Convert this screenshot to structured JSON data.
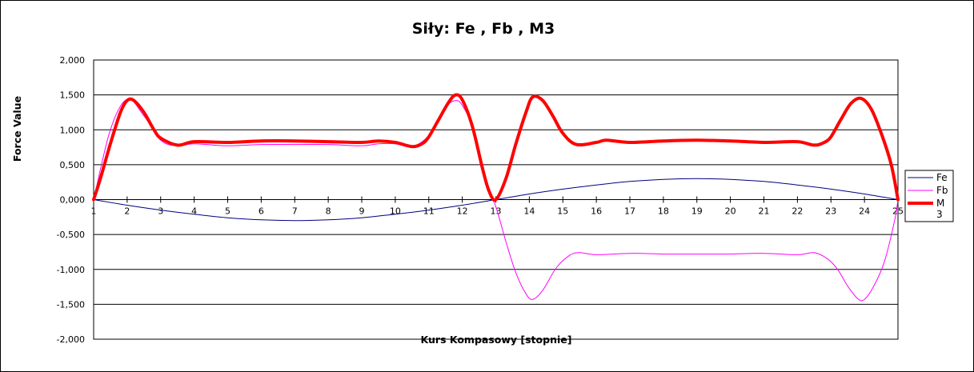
{
  "chart_data": {
    "type": "line",
    "title": "Siły:  Fe , Fb , M3",
    "xlabel": "Kurs Kompasowy  [stopnie]",
    "ylabel": "Force Value",
    "xlim": [
      1,
      25
    ],
    "ylim": [
      -2.0,
      2.0
    ],
    "x_ticks": [
      "1",
      "2",
      "3",
      "4",
      "5",
      "6",
      "7",
      "8",
      "9",
      "10",
      "11",
      "12",
      "13",
      "14",
      "15",
      "16",
      "17",
      "18",
      "19",
      "20",
      "21",
      "22",
      "23",
      "24",
      "25"
    ],
    "y_ticks": [
      "2,000",
      "1,500",
      "1,000",
      "0,500",
      "0,000",
      "-0,500",
      "-1,000",
      "-1,500",
      "-2,000"
    ],
    "grid": "horizontal",
    "legend_position": "right",
    "series": [
      {
        "name": "Fe",
        "color": "#000080",
        "x": [
          1,
          2,
          3,
          4,
          5,
          6,
          7,
          8,
          9,
          10,
          11,
          12,
          13,
          14,
          15,
          16,
          17,
          18,
          19,
          20,
          21,
          22,
          23,
          24,
          25
        ],
        "values": [
          0.0,
          -0.08,
          -0.15,
          -0.21,
          -0.26,
          -0.29,
          -0.3,
          -0.29,
          -0.26,
          -0.21,
          -0.15,
          -0.08,
          0.0,
          0.08,
          0.15,
          0.21,
          0.26,
          0.29,
          0.3,
          0.29,
          0.26,
          0.21,
          0.15,
          0.08,
          0.0
        ]
      },
      {
        "name": "Fb",
        "color": "#ff00ff",
        "x": [
          1,
          1.5,
          2,
          2.5,
          3,
          3.5,
          4,
          5,
          6,
          7,
          8,
          9,
          9.5,
          10,
          10.5,
          11,
          11.5,
          11.8,
          12,
          12.3,
          12.6,
          12.8,
          13,
          13.3,
          13.6,
          13.9,
          14.1,
          14.4,
          14.8,
          15.2,
          15.5,
          16,
          17,
          18,
          19,
          20,
          21,
          22,
          22.5,
          22.9,
          23.2,
          23.5,
          23.8,
          24,
          24.3,
          24.6,
          24.9,
          25
        ],
        "values": [
          0.0,
          1.0,
          1.44,
          1.2,
          0.85,
          0.77,
          0.8,
          0.77,
          0.79,
          0.79,
          0.79,
          0.77,
          0.8,
          0.8,
          0.76,
          0.92,
          1.32,
          1.42,
          1.35,
          1.05,
          0.5,
          0.1,
          -0.1,
          -0.6,
          -1.05,
          -1.35,
          -1.43,
          -1.3,
          -0.98,
          -0.8,
          -0.76,
          -0.79,
          -0.77,
          -0.78,
          -0.78,
          -0.78,
          -0.77,
          -0.79,
          -0.76,
          -0.85,
          -1.0,
          -1.24,
          -1.42,
          -1.43,
          -1.22,
          -0.88,
          -0.3,
          0.0
        ]
      },
      {
        "name": "M3",
        "color": "#ff0000",
        "x": [
          1,
          1.2,
          1.5,
          1.8,
          2,
          2.2,
          2.5,
          2.8,
          3,
          3.5,
          4,
          5,
          6,
          7,
          8,
          9,
          9.5,
          10,
          10.5,
          10.8,
          11,
          11.3,
          11.6,
          11.8,
          12,
          12.3,
          12.6,
          12.8,
          13,
          13.3,
          13.6,
          13.9,
          14.1,
          14.4,
          14.7,
          15,
          15.4,
          16,
          16.3,
          17,
          18,
          19,
          20,
          21,
          22,
          22.5,
          22.8,
          23,
          23.3,
          23.6,
          23.9,
          24.2,
          24.5,
          24.8,
          25
        ],
        "values": [
          0.0,
          0.3,
          0.8,
          1.25,
          1.42,
          1.42,
          1.25,
          1.0,
          0.88,
          0.78,
          0.83,
          0.82,
          0.84,
          0.84,
          0.83,
          0.82,
          0.84,
          0.82,
          0.76,
          0.8,
          0.9,
          1.15,
          1.4,
          1.5,
          1.43,
          1.05,
          0.45,
          0.12,
          0.0,
          0.3,
          0.8,
          1.25,
          1.47,
          1.42,
          1.2,
          0.95,
          0.79,
          0.82,
          0.85,
          0.82,
          0.84,
          0.85,
          0.84,
          0.82,
          0.83,
          0.78,
          0.82,
          0.9,
          1.15,
          1.38,
          1.45,
          1.3,
          0.95,
          0.5,
          0.0
        ]
      }
    ]
  },
  "legend": {
    "fe_label": "Fe",
    "fb_label": "Fb",
    "m3_label_line1": "M",
    "m3_label_line2": "3"
  }
}
